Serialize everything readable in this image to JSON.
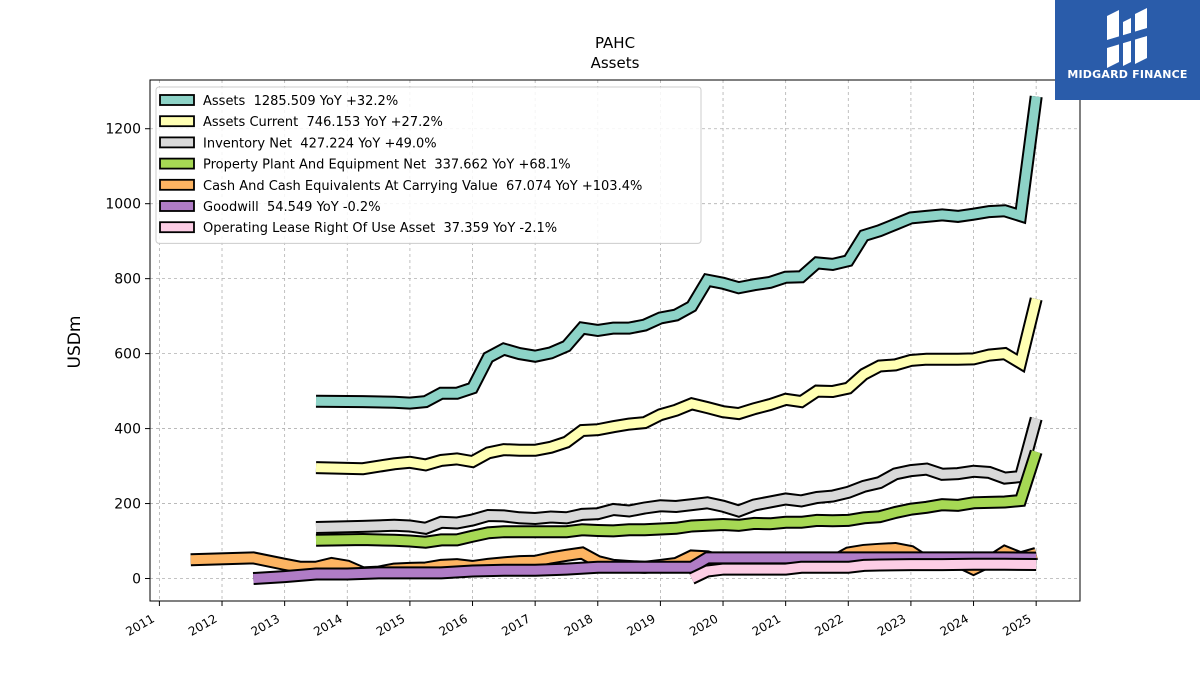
{
  "chart_data": {
    "type": "line",
    "title": "PAHC",
    "subtitle": "Assets",
    "ylabel": "USDm",
    "xlabel": "",
    "ylim": [
      -60,
      1330
    ],
    "xlim": [
      2010.85,
      2025.7
    ],
    "yticks": [
      0,
      200,
      400,
      600,
      800,
      1000,
      1200
    ],
    "xticks": [
      2011,
      2012,
      2013,
      2014,
      2015,
      2016,
      2017,
      2018,
      2019,
      2020,
      2021,
      2022,
      2023,
      2024,
      2025
    ],
    "grid": true,
    "legend_position": "top-left",
    "series": [
      {
        "name": "Assets",
        "legend": "Assets  1285.509 YoY +32.2%",
        "color": "#8dd3c7",
        "points": [
          [
            2013.5,
            473
          ],
          [
            2014.25,
            472
          ],
          [
            2014.75,
            470
          ],
          [
            2015.0,
            468
          ],
          [
            2015.25,
            472
          ],
          [
            2015.5,
            494
          ],
          [
            2015.75,
            494
          ],
          [
            2016.0,
            508
          ],
          [
            2016.25,
            590
          ],
          [
            2016.5,
            612
          ],
          [
            2016.75,
            600
          ],
          [
            2017.0,
            593
          ],
          [
            2017.25,
            602
          ],
          [
            2017.5,
            620
          ],
          [
            2017.75,
            668
          ],
          [
            2018.0,
            662
          ],
          [
            2018.25,
            668
          ],
          [
            2018.5,
            668
          ],
          [
            2018.75,
            676
          ],
          [
            2019.0,
            695
          ],
          [
            2019.25,
            703
          ],
          [
            2019.5,
            726
          ],
          [
            2019.75,
            796
          ],
          [
            2020.0,
            788
          ],
          [
            2020.25,
            776
          ],
          [
            2020.5,
            784
          ],
          [
            2020.75,
            790
          ],
          [
            2021.0,
            804
          ],
          [
            2021.25,
            805
          ],
          [
            2021.5,
            842
          ],
          [
            2021.75,
            838
          ],
          [
            2022.0,
            848
          ],
          [
            2022.25,
            915
          ],
          [
            2022.5,
            928
          ],
          [
            2022.75,
            945
          ],
          [
            2023.0,
            962
          ],
          [
            2023.25,
            966
          ],
          [
            2023.5,
            970
          ],
          [
            2023.75,
            966
          ],
          [
            2024.0,
            972
          ],
          [
            2024.25,
            979
          ],
          [
            2024.5,
            981
          ],
          [
            2024.75,
            968
          ],
          [
            2025.0,
            1286
          ]
        ]
      },
      {
        "name": "Assets Current",
        "legend": "Assets Current  746.153 YoY +27.2%",
        "color": "#ffffb3",
        "points": [
          [
            2013.5,
            296
          ],
          [
            2014.25,
            293
          ],
          [
            2014.75,
            306
          ],
          [
            2015.0,
            310
          ],
          [
            2015.25,
            303
          ],
          [
            2015.5,
            315
          ],
          [
            2015.75,
            319
          ],
          [
            2016.0,
            312
          ],
          [
            2016.25,
            335
          ],
          [
            2016.5,
            344
          ],
          [
            2016.75,
            342
          ],
          [
            2017.0,
            342
          ],
          [
            2017.25,
            350
          ],
          [
            2017.5,
            364
          ],
          [
            2017.75,
            395
          ],
          [
            2018.0,
            397
          ],
          [
            2018.25,
            405
          ],
          [
            2018.5,
            412
          ],
          [
            2018.75,
            416
          ],
          [
            2019.0,
            437
          ],
          [
            2019.25,
            449
          ],
          [
            2019.5,
            466
          ],
          [
            2019.75,
            456
          ],
          [
            2020.0,
            445
          ],
          [
            2020.25,
            440
          ],
          [
            2020.5,
            453
          ],
          [
            2020.75,
            464
          ],
          [
            2021.0,
            478
          ],
          [
            2021.25,
            472
          ],
          [
            2021.5,
            500
          ],
          [
            2021.75,
            499
          ],
          [
            2022.0,
            508
          ],
          [
            2022.25,
            545
          ],
          [
            2022.5,
            567
          ],
          [
            2022.75,
            570
          ],
          [
            2023.0,
            582
          ],
          [
            2023.25,
            585
          ],
          [
            2023.5,
            585
          ],
          [
            2023.75,
            585
          ],
          [
            2024.0,
            586
          ],
          [
            2024.25,
            596
          ],
          [
            2024.5,
            600
          ],
          [
            2024.75,
            575
          ],
          [
            2025.0,
            746
          ]
        ]
      },
      {
        "name": "Inventory Net",
        "legend": "Inventory Net  427.224 YoY +49.0%",
        "color": "#d9d9d9",
        "points": [
          [
            2013.5,
            136
          ],
          [
            2014.25,
            139
          ],
          [
            2014.75,
            142
          ],
          [
            2015.0,
            140
          ],
          [
            2015.25,
            134
          ],
          [
            2015.5,
            150
          ],
          [
            2015.75,
            148
          ],
          [
            2016.0,
            156
          ],
          [
            2016.25,
            168
          ],
          [
            2016.5,
            167
          ],
          [
            2016.75,
            162
          ],
          [
            2017.0,
            160
          ],
          [
            2017.25,
            164
          ],
          [
            2017.5,
            162
          ],
          [
            2017.75,
            171
          ],
          [
            2018.0,
            173
          ],
          [
            2018.25,
            184
          ],
          [
            2018.5,
            180
          ],
          [
            2018.75,
            188
          ],
          [
            2019.0,
            194
          ],
          [
            2019.25,
            192
          ],
          [
            2019.5,
            197
          ],
          [
            2019.75,
            202
          ],
          [
            2020.0,
            193
          ],
          [
            2020.25,
            180
          ],
          [
            2020.5,
            196
          ],
          [
            2020.75,
            204
          ],
          [
            2021.0,
            212
          ],
          [
            2021.25,
            207
          ],
          [
            2021.5,
            216
          ],
          [
            2021.75,
            220
          ],
          [
            2022.0,
            230
          ],
          [
            2022.25,
            246
          ],
          [
            2022.5,
            256
          ],
          [
            2022.75,
            279
          ],
          [
            2023.0,
            288
          ],
          [
            2023.25,
            292
          ],
          [
            2023.5,
            278
          ],
          [
            2023.75,
            280
          ],
          [
            2024.0,
            286
          ],
          [
            2024.25,
            283
          ],
          [
            2024.5,
            268
          ],
          [
            2024.75,
            272
          ],
          [
            2025.0,
            427
          ]
        ]
      },
      {
        "name": "Property Plant And Equipment Net",
        "legend": "Property Plant And Equipment Net  337.662 YoY +68.1%",
        "color": "#a6d854",
        "points": [
          [
            2013.5,
            102
          ],
          [
            2014.25,
            104
          ],
          [
            2014.75,
            102
          ],
          [
            2015.0,
            100
          ],
          [
            2015.25,
            97
          ],
          [
            2015.5,
            103
          ],
          [
            2015.75,
            103
          ],
          [
            2016.0,
            113
          ],
          [
            2016.25,
            122
          ],
          [
            2016.5,
            125
          ],
          [
            2016.75,
            125
          ],
          [
            2017.0,
            125
          ],
          [
            2017.25,
            125
          ],
          [
            2017.5,
            125
          ],
          [
            2017.75,
            130
          ],
          [
            2018.0,
            128
          ],
          [
            2018.25,
            127
          ],
          [
            2018.5,
            130
          ],
          [
            2018.75,
            130
          ],
          [
            2019.0,
            132
          ],
          [
            2019.25,
            134
          ],
          [
            2019.5,
            140
          ],
          [
            2019.75,
            142
          ],
          [
            2020.0,
            144
          ],
          [
            2020.25,
            142
          ],
          [
            2020.5,
            147
          ],
          [
            2020.75,
            146
          ],
          [
            2021.0,
            150
          ],
          [
            2021.25,
            150
          ],
          [
            2021.5,
            155
          ],
          [
            2021.75,
            154
          ],
          [
            2022.0,
            155
          ],
          [
            2022.25,
            162
          ],
          [
            2022.5,
            165
          ],
          [
            2022.75,
            176
          ],
          [
            2023.0,
            185
          ],
          [
            2023.25,
            190
          ],
          [
            2023.5,
            197
          ],
          [
            2023.75,
            195
          ],
          [
            2024.0,
            202
          ],
          [
            2024.25,
            203
          ],
          [
            2024.5,
            204
          ],
          [
            2024.75,
            208
          ],
          [
            2025.0,
            338
          ]
        ]
      },
      {
        "name": "Cash And Cash Equivalents At Carrying Value",
        "legend": "Cash And Cash Equivalents At Carrying Value  67.074 YoY +103.4%",
        "color": "#fdb462",
        "points": [
          [
            2011.5,
            50
          ],
          [
            2012.5,
            55
          ],
          [
            2013.0,
            38
          ],
          [
            2013.25,
            30
          ],
          [
            2013.5,
            30
          ],
          [
            2013.75,
            40
          ],
          [
            2014.0,
            33
          ],
          [
            2014.25,
            15
          ],
          [
            2014.5,
            17
          ],
          [
            2014.75,
            25
          ],
          [
            2015.0,
            27
          ],
          [
            2015.25,
            28
          ],
          [
            2015.5,
            35
          ],
          [
            2015.75,
            37
          ],
          [
            2016.0,
            32
          ],
          [
            2016.25,
            38
          ],
          [
            2016.5,
            42
          ],
          [
            2016.75,
            45
          ],
          [
            2017.0,
            46
          ],
          [
            2017.25,
            55
          ],
          [
            2017.5,
            62
          ],
          [
            2017.75,
            68
          ],
          [
            2018.0,
            45
          ],
          [
            2018.25,
            35
          ],
          [
            2018.5,
            32
          ],
          [
            2018.75,
            30
          ],
          [
            2019.0,
            35
          ],
          [
            2019.25,
            40
          ],
          [
            2019.5,
            60
          ],
          [
            2019.75,
            58
          ],
          [
            2020.0,
            45
          ],
          [
            2020.25,
            40
          ],
          [
            2020.5,
            45
          ],
          [
            2020.75,
            42
          ],
          [
            2021.0,
            44
          ],
          [
            2021.25,
            42
          ],
          [
            2021.5,
            45
          ],
          [
            2021.75,
            45
          ],
          [
            2022.0,
            68
          ],
          [
            2022.25,
            75
          ],
          [
            2022.5,
            78
          ],
          [
            2022.75,
            80
          ],
          [
            2023.0,
            72
          ],
          [
            2023.25,
            45
          ],
          [
            2023.5,
            40
          ],
          [
            2023.75,
            45
          ],
          [
            2024.0,
            25
          ],
          [
            2024.25,
            45
          ],
          [
            2024.5,
            72
          ],
          [
            2024.75,
            55
          ],
          [
            2025.0,
            67
          ]
        ]
      },
      {
        "name": "Goodwill",
        "legend": "Goodwill  54.549 YoY -0.2%",
        "color": "#b07cc6",
        "points": [
          [
            2012.5,
            0
          ],
          [
            2013.0,
            5
          ],
          [
            2013.5,
            12
          ],
          [
            2014.0,
            12
          ],
          [
            2014.5,
            15
          ],
          [
            2015.0,
            15
          ],
          [
            2015.5,
            15
          ],
          [
            2016.0,
            20
          ],
          [
            2016.5,
            22
          ],
          [
            2017.0,
            22
          ],
          [
            2017.5,
            25
          ],
          [
            2018.0,
            30
          ],
          [
            2018.5,
            30
          ],
          [
            2019.0,
            30
          ],
          [
            2019.5,
            30
          ],
          [
            2019.75,
            55
          ],
          [
            2020.0,
            55
          ],
          [
            2020.5,
            55
          ],
          [
            2021.0,
            55
          ],
          [
            2021.5,
            55
          ],
          [
            2022.0,
            55
          ],
          [
            2022.5,
            55
          ],
          [
            2023.0,
            55
          ],
          [
            2023.5,
            55
          ],
          [
            2024.0,
            55
          ],
          [
            2024.5,
            55
          ],
          [
            2025.0,
            54.5
          ]
        ]
      },
      {
        "name": "Operating Lease Right Of Use Asset",
        "legend": "Operating Lease Right Of Use Asset  37.359 YoY -2.1%",
        "color": "#fccde5",
        "points": [
          [
            2019.5,
            0
          ],
          [
            2019.75,
            20
          ],
          [
            2020.0,
            25
          ],
          [
            2020.5,
            25
          ],
          [
            2021.0,
            25
          ],
          [
            2021.25,
            30
          ],
          [
            2021.5,
            30
          ],
          [
            2022.0,
            30
          ],
          [
            2022.25,
            35
          ],
          [
            2022.5,
            36
          ],
          [
            2023.0,
            37
          ],
          [
            2023.5,
            37
          ],
          [
            2024.0,
            38
          ],
          [
            2024.5,
            38
          ],
          [
            2025.0,
            37.4
          ]
        ]
      }
    ]
  },
  "logo": {
    "text": "MIDGARD FINANCE",
    "background": "#2a5caa"
  }
}
